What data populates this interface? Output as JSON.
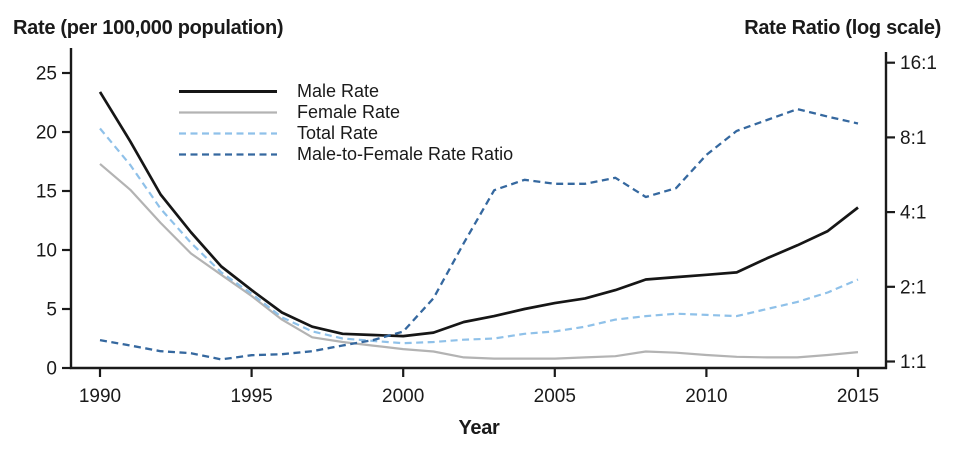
{
  "chart_data": {
    "type": "line",
    "x": [
      1990,
      1991,
      1992,
      1993,
      1994,
      1995,
      1996,
      1997,
      1998,
      1999,
      2000,
      2001,
      2002,
      2003,
      2004,
      2005,
      2006,
      2007,
      2008,
      2009,
      2010,
      2011,
      2012,
      2013,
      2014,
      2015
    ],
    "series": [
      {
        "name": "Male Rate",
        "axis": "left",
        "style": "solid",
        "color": "#161616",
        "values": [
          23.4,
          19.2,
          14.7,
          11.5,
          8.6,
          6.6,
          4.7,
          3.5,
          2.9,
          2.8,
          2.7,
          3.0,
          3.9,
          4.4,
          5.0,
          5.5,
          5.9,
          6.6,
          7.5,
          7.7,
          7.9,
          8.1,
          9.3,
          10.4,
          11.6,
          13.6
        ]
      },
      {
        "name": "Female Rate",
        "axis": "left",
        "style": "solid",
        "color": "#b3b3b3",
        "values": [
          17.3,
          15.1,
          12.3,
          9.7,
          7.9,
          6.1,
          4.1,
          2.6,
          2.2,
          1.9,
          1.6,
          1.4,
          0.9,
          0.8,
          0.8,
          0.8,
          0.9,
          1.0,
          1.4,
          1.3,
          1.1,
          0.95,
          0.9,
          0.9,
          1.1,
          1.35
        ]
      },
      {
        "name": "Total Rate",
        "axis": "left",
        "style": "dashed",
        "color": "#8fc1e9",
        "values": [
          20.3,
          17.2,
          13.5,
          10.6,
          8.1,
          6.3,
          4.3,
          3.1,
          2.5,
          2.3,
          2.1,
          2.2,
          2.4,
          2.5,
          2.9,
          3.1,
          3.5,
          4.1,
          4.4,
          4.6,
          4.5,
          4.4,
          5.0,
          5.6,
          6.4,
          7.5
        ]
      },
      {
        "name": "Male-to-Female Rate Ratio",
        "axis": "right",
        "style": "dashed",
        "color": "#35689f",
        "values": [
          1.22,
          1.16,
          1.1,
          1.08,
          1.02,
          1.06,
          1.07,
          1.1,
          1.16,
          1.22,
          1.32,
          1.8,
          3.0,
          4.9,
          5.4,
          5.2,
          5.2,
          5.5,
          4.6,
          5.0,
          6.8,
          8.5,
          9.4,
          10.4,
          9.7,
          9.1
        ]
      }
    ],
    "left_axis": {
      "title": "Rate (per 100,000 population)",
      "tick_values": [
        0,
        5,
        10,
        15,
        20,
        25
      ],
      "tick_labels": [
        "0",
        "5",
        "10",
        "15",
        "20",
        "25"
      ],
      "range": [
        0,
        25
      ]
    },
    "right_axis": {
      "title": "Rate Ratio (log scale)",
      "scale": "log2",
      "tick_values": [
        16,
        8,
        4,
        2,
        1
      ],
      "tick_labels": [
        "16:1",
        "8:1",
        "4:1",
        "2:1",
        "1:1"
      ]
    },
    "x_axis": {
      "title": "Year",
      "tick_values": [
        1990,
        1995,
        2000,
        2005,
        2010,
        2015
      ],
      "tick_labels": [
        "1990",
        "1995",
        "2000",
        "2005",
        "2010",
        "2015"
      ],
      "range": [
        1990,
        2015
      ]
    },
    "legend_position": "top-left-inside",
    "grid": false
  }
}
